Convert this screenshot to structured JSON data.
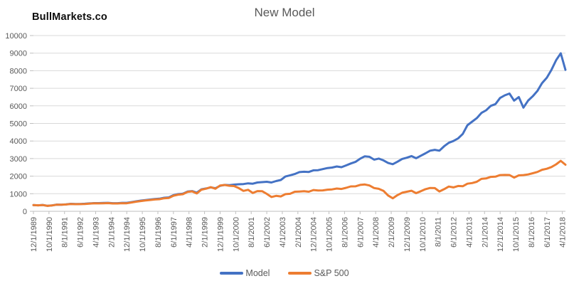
{
  "header": {
    "logo": "BullMarkets.co",
    "title": "New Model"
  },
  "legend": [
    {
      "label": "Model",
      "color": "#4472C4"
    },
    {
      "label": "S&P 500",
      "color": "#ED7D31"
    }
  ],
  "colors": {
    "gridline": "#D9D9D9",
    "axis_line": "#BFBFBF",
    "tick_mark": "#BFBFBF",
    "axis_text": "#595959",
    "title_text": "#595959",
    "model_blue": "#4472C4",
    "sp500_orange": "#ED7D31"
  },
  "chart_data": {
    "type": "line",
    "title": "New Model",
    "xlabel": "",
    "ylabel": "",
    "ylim": [
      0,
      10000
    ],
    "grid": true,
    "legend_position": "bottom",
    "x_start": "12/1/1989",
    "x_interval_months": 3,
    "x_tick_interval_months": 10,
    "x_tick_labels": [
      "12/1/1989",
      "10/1/1990",
      "8/1/1991",
      "6/1/1992",
      "4/1/1993",
      "2/1/1994",
      "12/1/1994",
      "10/1/1995",
      "8/1/1996",
      "6/1/1997",
      "4/1/1998",
      "2/1/1999",
      "12/1/1999",
      "10/1/2000",
      "8/1/2001",
      "6/1/2002",
      "4/1/2003",
      "2/1/2004",
      "12/1/2004",
      "10/1/2005",
      "8/1/2006",
      "6/1/2007",
      "4/1/2008",
      "2/1/2009",
      "12/1/2009",
      "10/1/2010",
      "8/1/2011",
      "6/1/2012",
      "4/1/2013",
      "2/1/2014",
      "12/1/2014",
      "10/1/2015",
      "8/1/2016",
      "6/1/2017",
      "4/1/2018"
    ],
    "y_ticks": [
      0,
      1000,
      2000,
      3000,
      4000,
      5000,
      6000,
      7000,
      8000,
      9000,
      10000
    ],
    "series": [
      {
        "name": "Model",
        "color": "#4472C4",
        "values": [
          353,
          341,
          360,
          310,
          336,
          380,
          378,
          395,
          425,
          413,
          419,
          430,
          448,
          464,
          465,
          474,
          482,
          463,
          462,
          481,
          480,
          523,
          568,
          608,
          640,
          670,
          698,
          716,
          770,
          790,
          915,
          975,
          1000,
          1120,
          1150,
          1060,
          1250,
          1300,
          1360,
          1310,
          1450,
          1500,
          1490,
          1520,
          1540,
          1550,
          1590,
          1570,
          1640,
          1660,
          1680,
          1640,
          1720,
          1780,
          1980,
          2050,
          2120,
          2230,
          2250,
          2240,
          2330,
          2340,
          2400,
          2460,
          2490,
          2550,
          2510,
          2610,
          2720,
          2810,
          2990,
          3130,
          3100,
          2940,
          3000,
          2900,
          2750,
          2680,
          2820,
          2980,
          3050,
          3140,
          3020,
          3160,
          3300,
          3450,
          3500,
          3450,
          3700,
          3900,
          4000,
          4150,
          4400,
          4900,
          5100,
          5300,
          5600,
          5750,
          6000,
          6100,
          6450,
          6600,
          6700,
          6300,
          6500,
          5900,
          6300,
          6550,
          6850,
          7300,
          7600,
          8050,
          8600,
          8990,
          8050
        ]
      },
      {
        "name": "S&P 500",
        "color": "#ED7D31",
        "values": [
          353,
          339,
          358,
          306,
          330,
          375,
          371,
          388,
          417,
          404,
          408,
          418,
          436,
          452,
          451,
          459,
          466,
          446,
          444,
          462,
          459,
          501,
          545,
          584,
          616,
          645,
          671,
          687,
          741,
          757,
          885,
          947,
          970,
          1102,
          1134,
          1017,
          1229,
          1286,
          1373,
          1283,
          1469,
          1499,
          1455,
          1437,
          1320,
          1160,
          1224,
          1041,
          1148,
          1147,
          990,
          815,
          880,
          848,
          975,
          996,
          1112,
          1126,
          1141,
          1115,
          1212,
          1181,
          1191,
          1229,
          1248,
          1295,
          1270,
          1336,
          1418,
          1421,
          1503,
          1527,
          1468,
          1323,
          1280,
          1166,
          900,
          740,
          919,
          1057,
          1115,
          1169,
          1031,
          1141,
          1258,
          1326,
          1321,
          1131,
          1258,
          1408,
          1362,
          1441,
          1426,
          1569,
          1606,
          1682,
          1848,
          1872,
          1960,
          1972,
          2059,
          2068,
          2063,
          1920,
          2044,
          2060,
          2099,
          2168,
          2239,
          2363,
          2423,
          2519,
          2674,
          2870,
          2650
        ]
      }
    ]
  }
}
